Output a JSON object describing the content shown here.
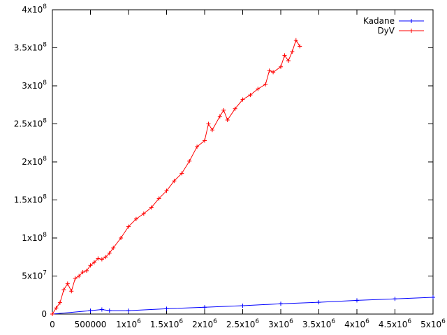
{
  "chart_data": {
    "type": "line",
    "title": "",
    "xlabel": "",
    "ylabel": "",
    "xlim": [
      0,
      5000000
    ],
    "ylim": [
      0,
      400000000
    ],
    "grid": false,
    "legend_position": "top-right",
    "x_ticks": [
      {
        "value": 0,
        "mantissa": "0",
        "exp": ""
      },
      {
        "value": 500000,
        "mantissa": "500000",
        "exp": ""
      },
      {
        "value": 1000000,
        "mantissa": "1x10",
        "exp": "6"
      },
      {
        "value": 1500000,
        "mantissa": "1.5x10",
        "exp": "6"
      },
      {
        "value": 2000000,
        "mantissa": "2x10",
        "exp": "6"
      },
      {
        "value": 2500000,
        "mantissa": "2.5x10",
        "exp": "6"
      },
      {
        "value": 3000000,
        "mantissa": "3x10",
        "exp": "6"
      },
      {
        "value": 3500000,
        "mantissa": "3.5x10",
        "exp": "6"
      },
      {
        "value": 4000000,
        "mantissa": "4x10",
        "exp": "6"
      },
      {
        "value": 4500000,
        "mantissa": "4.5x10",
        "exp": "6"
      },
      {
        "value": 5000000,
        "mantissa": "5x10",
        "exp": "6"
      }
    ],
    "y_ticks": [
      {
        "value": 0,
        "mantissa": "0",
        "exp": ""
      },
      {
        "value": 50000000,
        "mantissa": "5x10",
        "exp": "7"
      },
      {
        "value": 100000000,
        "mantissa": "1x10",
        "exp": "8"
      },
      {
        "value": 150000000,
        "mantissa": "1.5x10",
        "exp": "8"
      },
      {
        "value": 200000000,
        "mantissa": "2x10",
        "exp": "8"
      },
      {
        "value": 250000000,
        "mantissa": "2.5x10",
        "exp": "8"
      },
      {
        "value": 300000000,
        "mantissa": "3x10",
        "exp": "8"
      },
      {
        "value": 350000000,
        "mantissa": "3.5x10",
        "exp": "8"
      },
      {
        "value": 400000000,
        "mantissa": "4x10",
        "exp": "8"
      }
    ],
    "series": [
      {
        "name": "Kadane",
        "color": "#0000ff",
        "x": [
          0,
          500000,
          650000,
          750000,
          1000000,
          1500000,
          2000000,
          2500000,
          3000000,
          3500000,
          4000000,
          4500000,
          5000000
        ],
        "y": [
          0,
          4500000,
          6000000,
          4500000,
          4500000,
          7000000,
          9000000,
          11000000,
          13500000,
          15500000,
          18000000,
          20000000,
          22000000
        ]
      },
      {
        "name": "DyV",
        "color": "#ff0000",
        "x": [
          0,
          50000,
          100000,
          150000,
          200000,
          250000,
          300000,
          350000,
          400000,
          450000,
          500000,
          550000,
          600000,
          650000,
          700000,
          750000,
          800000,
          900000,
          1000000,
          1100000,
          1200000,
          1300000,
          1400000,
          1500000,
          1600000,
          1700000,
          1800000,
          1900000,
          2000000,
          2050000,
          2100000,
          2200000,
          2250000,
          2300000,
          2400000,
          2500000,
          2600000,
          2700000,
          2800000,
          2850000,
          2900000,
          3000000,
          3050000,
          3100000,
          3150000,
          3200000,
          3250000
        ],
        "y": [
          0,
          8000000,
          15000000,
          32000000,
          40000000,
          30000000,
          47000000,
          50000000,
          55000000,
          57000000,
          64000000,
          68000000,
          73000000,
          72000000,
          75000000,
          80000000,
          87000000,
          100000000,
          115000000,
          125000000,
          132000000,
          140000000,
          152000000,
          162000000,
          175000000,
          185000000,
          201000000,
          220000000,
          228000000,
          250000000,
          242000000,
          260000000,
          268000000,
          255000000,
          270000000,
          282000000,
          288000000,
          296000000,
          302000000,
          320000000,
          318000000,
          325000000,
          340000000,
          333000000,
          345000000,
          360000000,
          352000000
        ]
      }
    ]
  }
}
